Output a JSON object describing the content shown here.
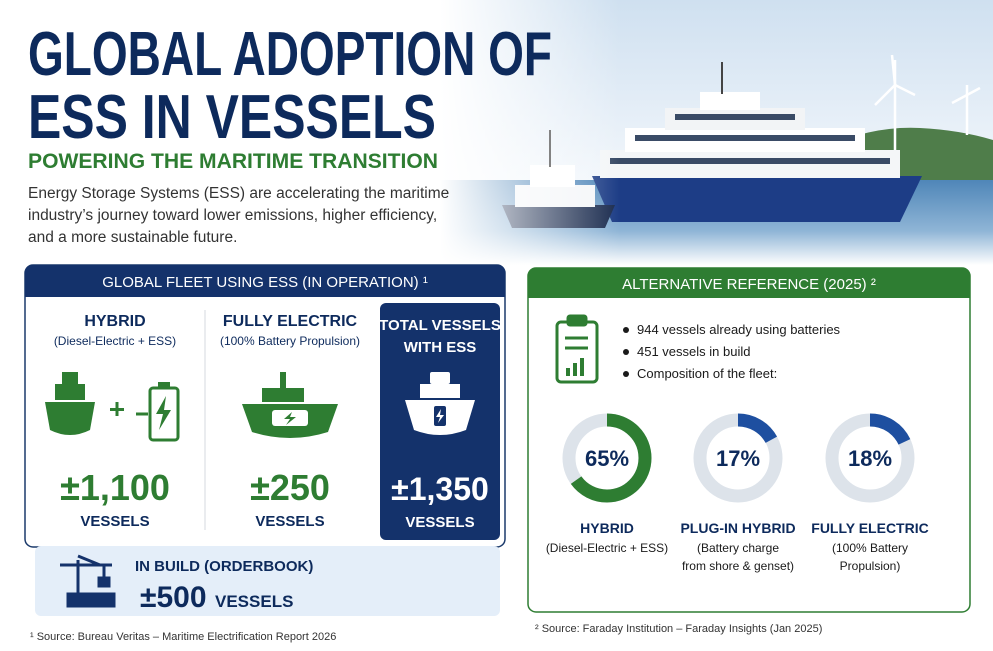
{
  "header": {
    "title_lines": [
      "GLOBAL ADOPTION OF",
      "ESS IN VESSELS"
    ],
    "subtitle": "POWERING THE MARITIME TRANSITION",
    "intro_lines": [
      "Energy Storage Systems (ESS) are accelerating the maritime",
      "industry’s journey toward lower emissions, higher efficiency,",
      "and a more sustainable future."
    ]
  },
  "fleet": {
    "heading": "GLOBAL FLEET USING ESS (IN OPERATION) ¹",
    "columns": [
      {
        "title": "HYBRID",
        "detail": "(Diesel-Electric + ESS)",
        "count": "±1,100",
        "unit": "VESSELS"
      },
      {
        "title": "FULLY ELECTRIC",
        "detail": "(100% Battery Propulsion)",
        "count": "±250",
        "unit": "VESSELS"
      },
      {
        "title_lines": [
          "TOTAL VESSELS",
          "WITH ESS"
        ],
        "count": "±1,350",
        "unit": "VESSELS"
      }
    ],
    "in_build": {
      "title": "IN BUILD (ORDERBOOK)",
      "count": "±500",
      "unit": "VESSELS"
    },
    "footnote": "¹ Source: Bureau Veritas – Maritime Electrification Report 2026"
  },
  "reference": {
    "heading": "ALTERNATIVE REFERENCE (2025) ²",
    "bullets": [
      "944 vessels already using batteries",
      "451 vessels in build",
      "Composition of the fleet:"
    ],
    "composition": [
      {
        "value": 65,
        "value_label": "65%",
        "color": "#2e7d32",
        "name": "HYBRID",
        "detail_lines": [
          "(Diesel-Electric + ESS)"
        ]
      },
      {
        "value": 17,
        "value_label": "17%",
        "color": "#1e4fa0",
        "name": "PLUG-IN HYBRID",
        "detail_lines": [
          "(Battery charge",
          "from shore & genset)"
        ]
      },
      {
        "value": 18,
        "value_label": "18%",
        "color": "#1e4fa0",
        "name": "FULLY ELECTRIC",
        "detail_lines": [
          "(100% Battery",
          "Propulsion)"
        ]
      }
    ],
    "footnote": "² Source: Faraday Institution – Faraday Insights (Jan 2025)"
  }
}
